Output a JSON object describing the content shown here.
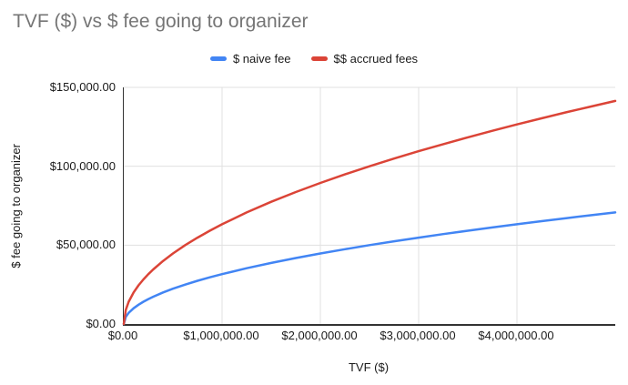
{
  "colors": {
    "background": "#ffffff",
    "title_text": "#757575",
    "axis_text": "#1a1a1a",
    "gridline": "#e0e0e0",
    "axis_line": "#333333"
  },
  "chart_data": {
    "type": "line",
    "title": "TVF ($) vs $ fee going to organizer",
    "xlabel": "TVF ($)",
    "ylabel": "$ fee going to organizer",
    "xlim": [
      0,
      5000000
    ],
    "ylim": [
      0,
      150000
    ],
    "grid": true,
    "legend_position": "top",
    "x_ticks": [
      {
        "value": 0,
        "label": "$0.00"
      },
      {
        "value": 1000000,
        "label": "$1,000,000.00"
      },
      {
        "value": 2000000,
        "label": "$2,000,000.00"
      },
      {
        "value": 3000000,
        "label": "$3,000,000.00"
      },
      {
        "value": 4000000,
        "label": "$4,000,000.00"
      }
    ],
    "y_ticks": [
      {
        "value": 0,
        "label": "$0.00"
      },
      {
        "value": 50000,
        "label": "$50,000.00"
      },
      {
        "value": 100000,
        "label": "$100,000.00"
      },
      {
        "value": 150000,
        "label": "$150,000.00"
      }
    ],
    "x": [
      0,
      20000,
      50000,
      100000,
      150000,
      200000,
      250000,
      300000,
      400000,
      500000,
      625000,
      750000,
      875000,
      1000000,
      1250000,
      1500000,
      1750000,
      2000000,
      2250000,
      2500000,
      2750000,
      3000000,
      3250000,
      3500000,
      3750000,
      4000000,
      4250000,
      4500000,
      4750000,
      5000000
    ],
    "series": [
      {
        "name": "$ naive fee",
        "color": "#4285F4",
        "values": [
          0,
          4472,
          7071,
          10000,
          12247,
          14142,
          15811,
          17321,
          20000,
          22361,
          25000,
          27386,
          29580,
          31623,
          35355,
          38730,
          41833,
          44721,
          47434,
          50000,
          52440,
          54772,
          57009,
          59161,
          61237,
          63246,
          65192,
          67082,
          68920,
          70711
        ]
      },
      {
        "name": "$$ accrued fees",
        "color": "#DB4437",
        "values": [
          0,
          8944,
          14142,
          20000,
          24495,
          28284,
          31623,
          34641,
          40000,
          44721,
          50000,
          54772,
          59161,
          63246,
          70711,
          77460,
          83666,
          89443,
          94868,
          100000,
          104881,
          109545,
          114018,
          118322,
          122474,
          126491,
          130384,
          134164,
          137840,
          141421
        ]
      }
    ]
  }
}
